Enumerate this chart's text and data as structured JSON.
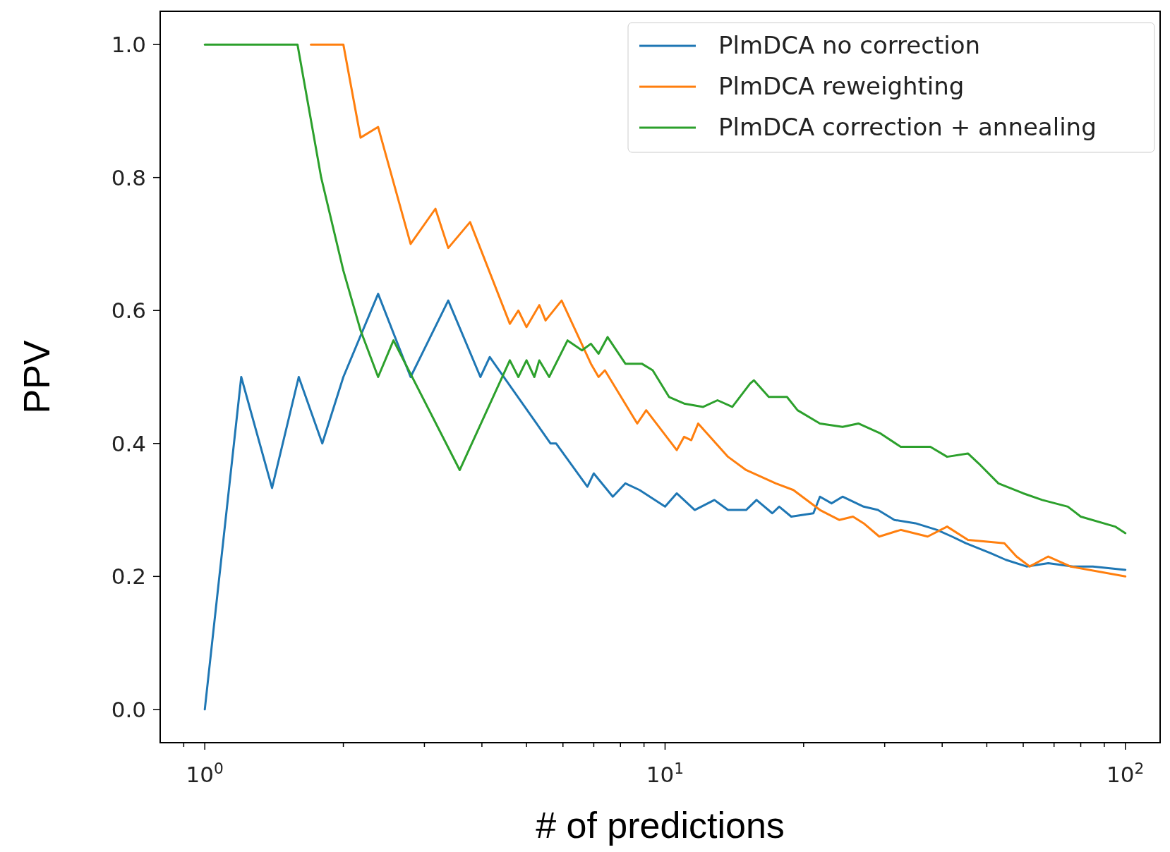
{
  "chart_data": {
    "type": "line",
    "xlabel": "# of predictions",
    "ylabel": "PPV",
    "log": "x",
    "xlim": [
      0.8,
      119
    ],
    "ylim": [
      -0.05,
      1.05
    ],
    "xticks": [
      {
        "value": 0.9,
        "label": null
      },
      {
        "value": 1,
        "label": "10$^{0}$"
      },
      {
        "value": 2,
        "label": null
      },
      {
        "value": 3,
        "label": null
      },
      {
        "value": 4,
        "label": null
      },
      {
        "value": 5,
        "label": null
      },
      {
        "value": 6,
        "label": null
      },
      {
        "value": 7,
        "label": null
      },
      {
        "value": 8,
        "label": null
      },
      {
        "value": 9,
        "label": null
      },
      {
        "value": 10,
        "label": "10$^{1}$"
      },
      {
        "value": 20,
        "label": null
      },
      {
        "value": 30,
        "label": null
      },
      {
        "value": 40,
        "label": null
      },
      {
        "value": 50,
        "label": null
      },
      {
        "value": 60,
        "label": null
      },
      {
        "value": 70,
        "label": null
      },
      {
        "value": 80,
        "label": null
      },
      {
        "value": 90,
        "label": null
      },
      {
        "value": 100,
        "label": "10$^{2}$"
      }
    ],
    "yticks": [
      {
        "value": 0,
        "label": "0.0"
      },
      {
        "value": 0.2,
        "label": "0.2"
      },
      {
        "value": 0.4,
        "label": "0.4"
      },
      {
        "value": 0.6,
        "label": "0.6"
      },
      {
        "value": 0.8,
        "label": "0.8"
      },
      {
        "value": 1,
        "label": "1.0"
      }
    ],
    "grid": false,
    "legend": "top right",
    "marker": "none",
    "line_style": "solid",
    "series": [
      {
        "name": "PlmDCA no correction",
        "color": "#1f77b4",
        "x": [
          1,
          1.2,
          1.4,
          1.6,
          1.8,
          2.0,
          2.38,
          2.8,
          3.38,
          3.97,
          4.16,
          5.64,
          5.8,
          6.78,
          7.0,
          7.7,
          8.2,
          8.8,
          10,
          10.6,
          11.6,
          12.8,
          13.7,
          15.0,
          15.8,
          17.1,
          17.7,
          18.8,
          21,
          21.7,
          23,
          24.3,
          27,
          29,
          31.5,
          35,
          39,
          42,
          45,
          51,
          55,
          61,
          68,
          77,
          85,
          100
        ],
        "values": [
          0,
          0.5,
          0.333,
          0.5,
          0.4,
          0.5,
          0.625,
          0.5,
          0.615,
          0.5,
          0.53,
          0.4,
          0.4,
          0.335,
          0.355,
          0.32,
          0.34,
          0.33,
          0.305,
          0.325,
          0.3,
          0.315,
          0.3,
          0.3,
          0.315,
          0.295,
          0.305,
          0.29,
          0.295,
          0.32,
          0.31,
          0.32,
          0.305,
          0.3,
          0.285,
          0.28,
          0.27,
          0.26,
          0.25,
          0.235,
          0.225,
          0.215,
          0.22,
          0.215,
          0.215,
          0.21
        ]
      },
      {
        "name": "PlmDCA reweighting",
        "color": "#ff7f0e",
        "x": [
          1.7,
          2,
          2.18,
          2.38,
          2.8,
          3.17,
          3.38,
          3.77,
          4.6,
          4.8,
          5.0,
          5.33,
          5.5,
          5.96,
          6.9,
          7.17,
          7.4,
          8.7,
          9.1,
          10.6,
          11.0,
          11.4,
          11.8,
          13.7,
          15,
          17.4,
          19,
          21.7,
          23.9,
          25.6,
          27,
          29.2,
          32.5,
          37.2,
          41,
          45.5,
          54.6,
          58,
          62,
          68,
          76,
          100
        ],
        "values": [
          1,
          1,
          0.86,
          0.876,
          0.7,
          0.753,
          0.694,
          0.733,
          0.58,
          0.6,
          0.575,
          0.608,
          0.585,
          0.615,
          0.52,
          0.5,
          0.51,
          0.43,
          0.45,
          0.39,
          0.41,
          0.405,
          0.43,
          0.38,
          0.36,
          0.34,
          0.33,
          0.3,
          0.285,
          0.29,
          0.28,
          0.26,
          0.27,
          0.26,
          0.275,
          0.255,
          0.25,
          0.23,
          0.215,
          0.23,
          0.215,
          0.2
        ]
      },
      {
        "name": "PlmDCA correction + annealing",
        "color": "#2ca02c",
        "x": [
          1,
          1.59,
          1.79,
          2.0,
          2.18,
          2.38,
          2.57,
          3.58,
          4.6,
          4.8,
          5.0,
          5.2,
          5.33,
          5.6,
          6.14,
          6.6,
          6.9,
          7.17,
          7.5,
          8.2,
          8.9,
          9.4,
          10.2,
          11.0,
          12.1,
          13.0,
          14.0,
          15.3,
          15.6,
          16.8,
          18.4,
          19.4,
          21.7,
          24.3,
          26.3,
          29.4,
          32.5,
          37.7,
          41,
          45.5,
          48,
          53,
          60,
          66,
          75,
          80,
          95,
          100
        ],
        "values": [
          1,
          1,
          0.8,
          0.66,
          0.57,
          0.5,
          0.555,
          0.36,
          0.525,
          0.5,
          0.525,
          0.5,
          0.525,
          0.5,
          0.555,
          0.54,
          0.55,
          0.535,
          0.56,
          0.52,
          0.52,
          0.51,
          0.47,
          0.46,
          0.455,
          0.465,
          0.455,
          0.49,
          0.495,
          0.47,
          0.47,
          0.45,
          0.43,
          0.425,
          0.43,
          0.415,
          0.395,
          0.395,
          0.38,
          0.385,
          0.37,
          0.34,
          0.325,
          0.315,
          0.305,
          0.29,
          0.275,
          0.265
        ]
      }
    ]
  }
}
